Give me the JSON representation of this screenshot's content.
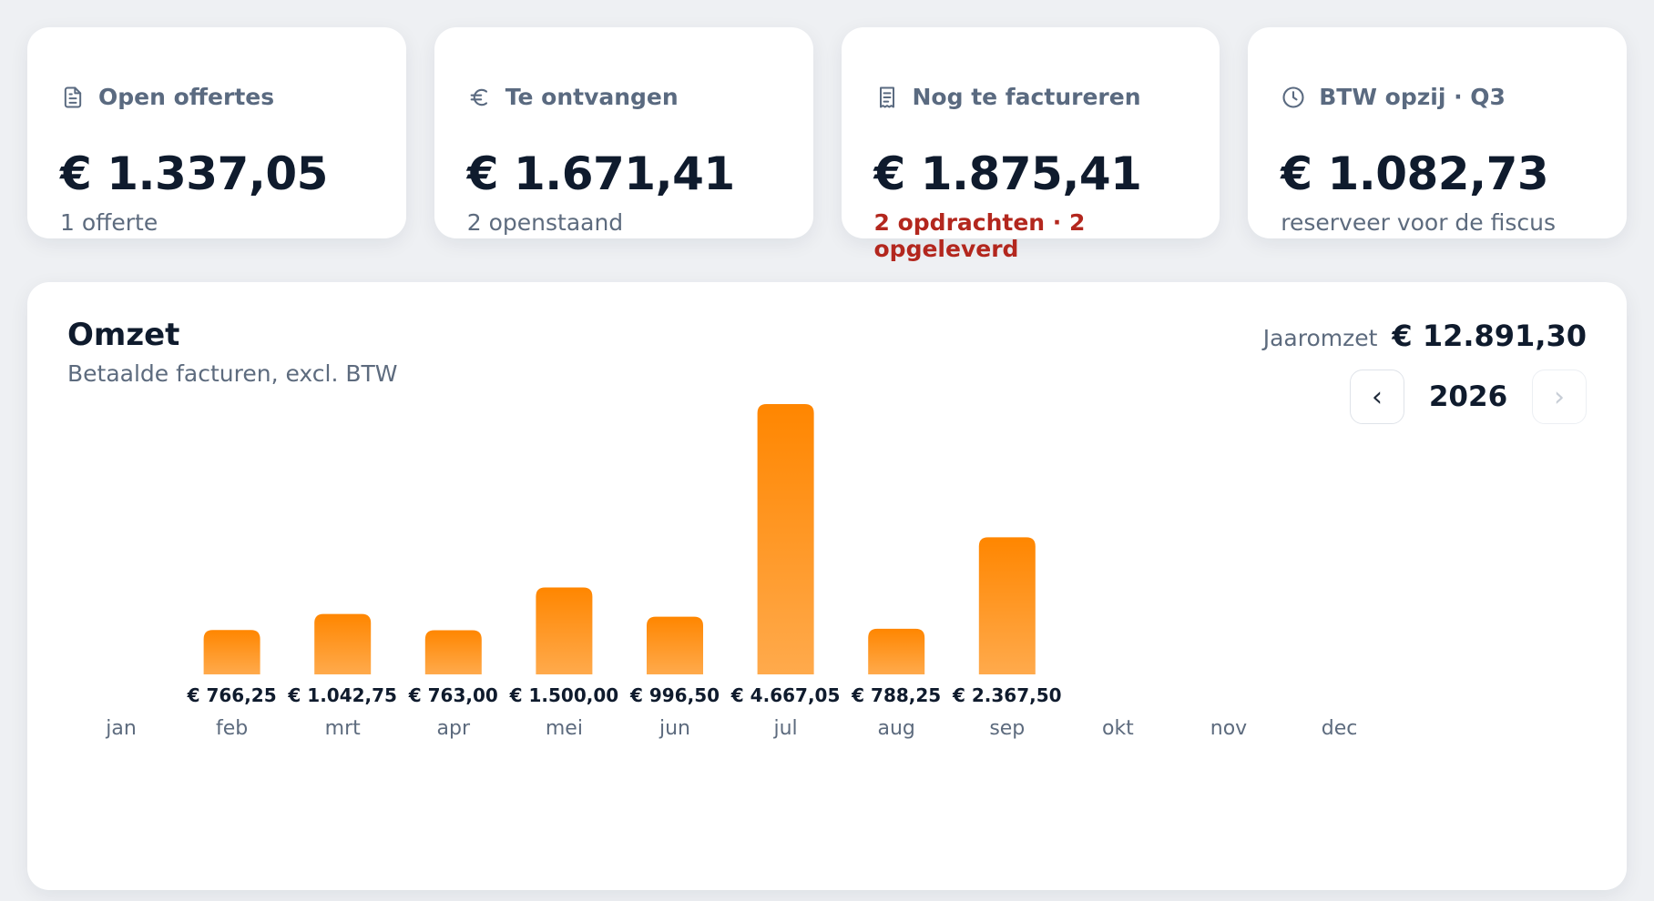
{
  "stats": [
    {
      "icon": "document-icon",
      "label": "Open offertes",
      "value": "€ 1.337,05",
      "sub": "1 offerte",
      "alert": false
    },
    {
      "icon": "euro-icon",
      "label": "Te ontvangen",
      "value": "€ 1.671,41",
      "sub": "2 openstaand",
      "alert": false
    },
    {
      "icon": "receipt-icon",
      "label": "Nog te factureren",
      "value": "€ 1.875,41",
      "sub": "2 opdrachten · 2 opgeleverd",
      "alert": true
    },
    {
      "icon": "clock-icon",
      "label": "BTW opzij · Q3",
      "value": "€ 1.082,73",
      "sub": "reserveer voor de fiscus",
      "alert": false
    }
  ],
  "chart": {
    "title": "Omzet",
    "subtitle": "Betaalde facturen, excl. BTW",
    "total_label": "Jaaromzet",
    "total_value": "€ 12.891,30",
    "year": "2026",
    "prev_label": "‹",
    "next_label": "›"
  },
  "chart_data": {
    "type": "bar",
    "categories": [
      "jan",
      "feb",
      "mrt",
      "apr",
      "mei",
      "jun",
      "jul",
      "aug",
      "sep",
      "okt",
      "nov",
      "dec"
    ],
    "values": [
      null,
      766.25,
      1042.75,
      763.0,
      1500.0,
      996.5,
      4667.05,
      788.25,
      2367.5,
      null,
      null,
      null
    ],
    "labels": [
      "",
      "€ 766,25",
      "€ 1.042,75",
      "€ 763,00",
      "€ 1.500,00",
      "€ 996,50",
      "€ 4.667,05",
      "€ 788,25",
      "€ 2.367,50",
      "",
      "",
      ""
    ],
    "bar_color_top": "#ff8600",
    "bar_color_bottom": "#ffaa4c",
    "grid": false
  },
  "colors": {
    "accent": "#ff8a00",
    "alert": "#b3271e",
    "text": "#0f1b2d",
    "muted": "#5d6b7e"
  }
}
